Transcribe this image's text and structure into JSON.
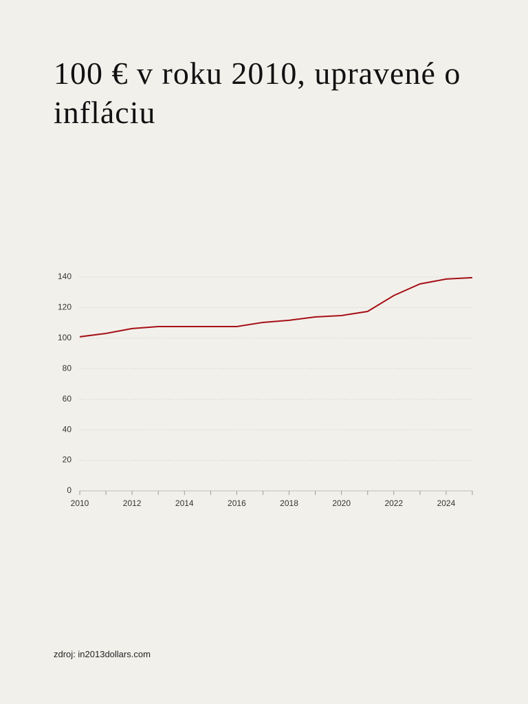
{
  "chart_data": {
    "type": "line",
    "title": "100 € v roku 2010, upravené o infláciu",
    "source": "zdroj: in2013dollars.com",
    "x": [
      2010,
      2011,
      2012,
      2013,
      2014,
      2015,
      2016,
      2017,
      2018,
      2019,
      2020,
      2021,
      2022,
      2023,
      2024,
      2025
    ],
    "series": [
      {
        "name": "100 €",
        "color": "#a50f15",
        "values": [
          100.9,
          103.1,
          106.3,
          107.6,
          107.6,
          107.6,
          107.6,
          110.3,
          111.7,
          113.9,
          114.8,
          117.5,
          127.9,
          135.5,
          138.7,
          139.6
        ]
      }
    ],
    "xlim": [
      2010,
      2025
    ],
    "xticks": [
      2010,
      2012,
      2014,
      2016,
      2018,
      2020,
      2022,
      2024
    ],
    "xminorticks": [
      2011,
      2013,
      2015,
      2017,
      2019,
      2021,
      2023,
      2025
    ],
    "ylim": [
      0,
      140
    ],
    "yticks": [
      0,
      20,
      40,
      60,
      80,
      100,
      120,
      140
    ],
    "grid": true
  }
}
